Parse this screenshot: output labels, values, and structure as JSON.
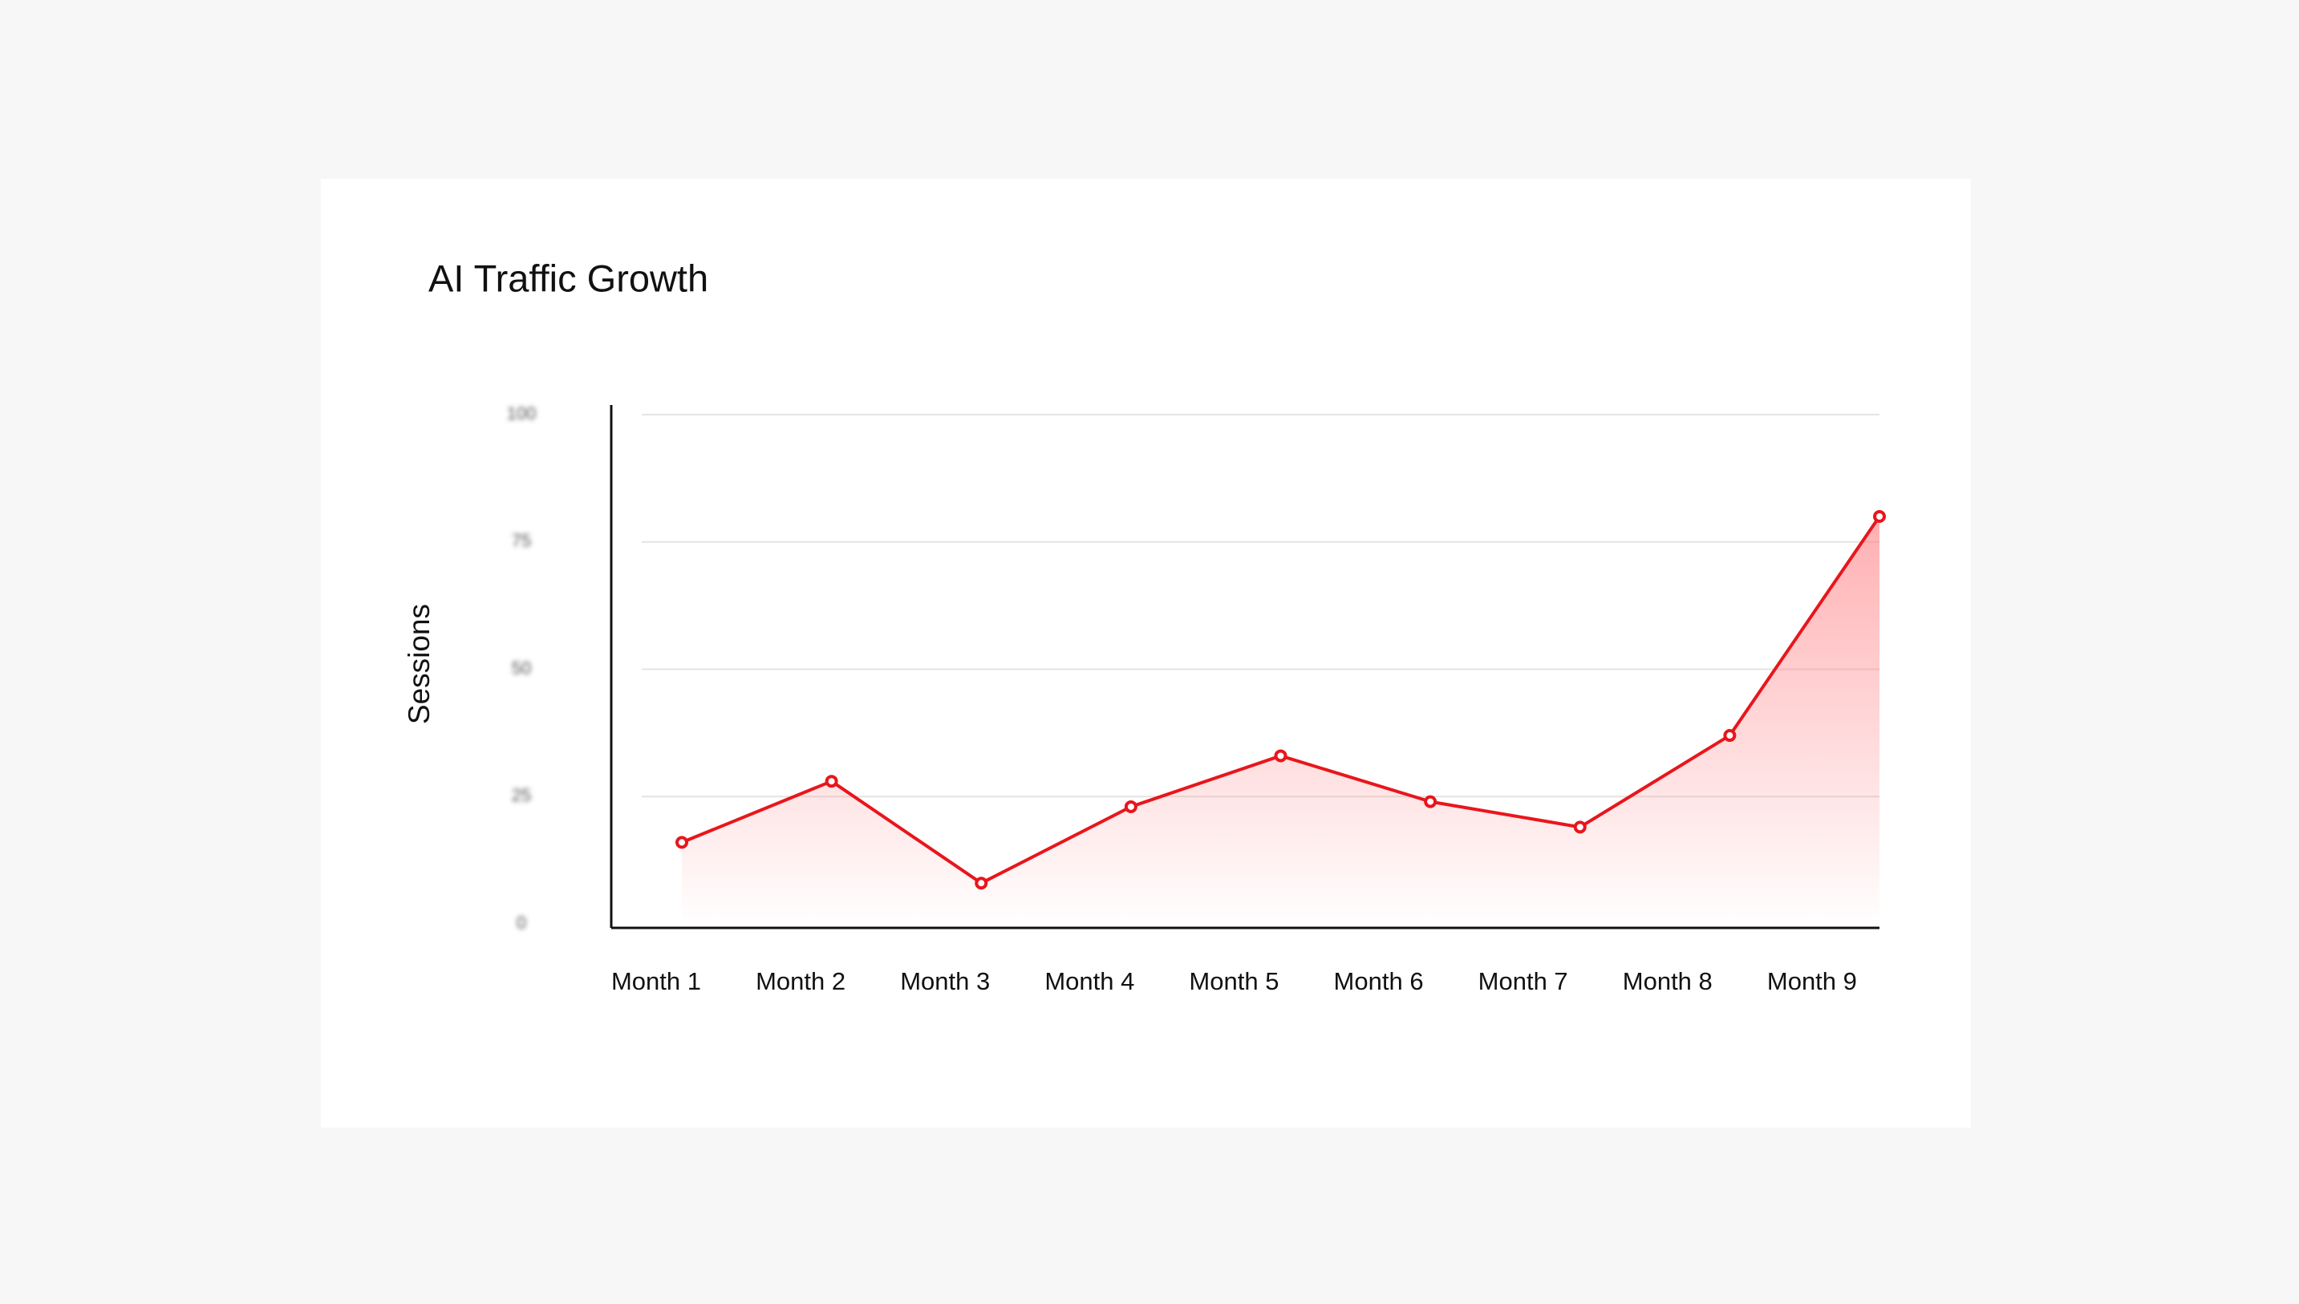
{
  "chart_data": {
    "type": "line",
    "title": "AI Traffic Growth",
    "y_label": "Sessions",
    "categories": [
      "Month 1",
      "Month 2",
      "Month 3",
      "Month 4",
      "Month 5",
      "Month 6",
      "Month 7",
      "Month 8",
      "Month 9"
    ],
    "values": [
      16,
      28,
      8,
      23,
      33,
      24,
      19,
      37,
      80
    ],
    "color": "#e8161c",
    "area": true,
    "ylim": [
      0,
      100
    ],
    "yticks": [
      0,
      25,
      50,
      75,
      100
    ],
    "grid": true
  }
}
